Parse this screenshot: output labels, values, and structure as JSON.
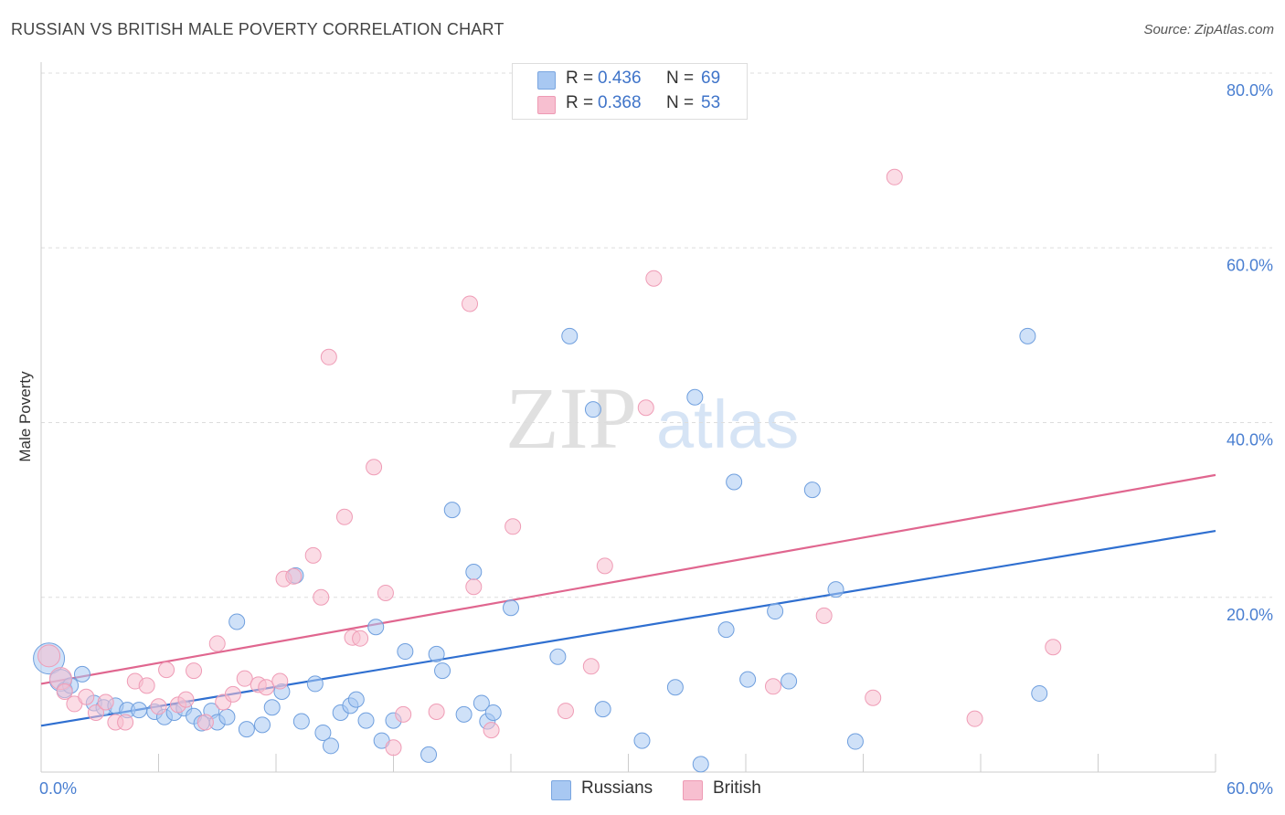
{
  "title": "RUSSIAN VS BRITISH MALE POVERTY CORRELATION CHART",
  "source": "Source: ZipAtlas.com",
  "watermark": {
    "zip": "ZIP",
    "atlas": "atlas"
  },
  "legend": {
    "rows": [
      {
        "r_label": "R =",
        "r_value": "0.436",
        "n_label": "N =",
        "n_value": "69",
        "color": "#a8c8f2",
        "stroke": "#7aa6e0"
      },
      {
        "r_label": "R =",
        "r_value": "0.368",
        "n_label": "N =",
        "n_value": "53",
        "color": "#f7bfd0",
        "stroke": "#ee9ab4"
      }
    ]
  },
  "bottom_legend": [
    {
      "label": "Russians",
      "color": "#a8c8f2",
      "stroke": "#7aa6e0"
    },
    {
      "label": "British",
      "color": "#f7bfd0",
      "stroke": "#ee9ab4"
    }
  ],
  "chart_data": {
    "type": "scatter",
    "title": "RUSSIAN VS BRITISH MALE POVERTY CORRELATION CHART",
    "xlabel": "",
    "ylabel": "Male Poverty",
    "xlim": [
      0,
      60
    ],
    "ylim": [
      0,
      80
    ],
    "x_tick_labels": [
      "0.0%",
      "60.0%"
    ],
    "y_ticks": [
      20,
      40,
      60,
      80
    ],
    "y_tick_labels": [
      "20.0%",
      "40.0%",
      "60.0%",
      "80.0%"
    ],
    "grid": true,
    "series": [
      {
        "name": "Russians",
        "color": "#a8c8f2",
        "stroke": "#6f9fde",
        "trend_color": "#2f6fd0",
        "trend": [
          [
            0,
            5.3
          ],
          [
            60,
            27.6
          ]
        ],
        "points": [
          [
            0.4,
            13.0,
            3
          ],
          [
            1.0,
            10.5,
            2
          ],
          [
            1.2,
            9.4,
            1
          ],
          [
            1.5,
            9.9,
            1
          ],
          [
            2.1,
            11.2,
            1
          ],
          [
            2.7,
            7.9,
            1
          ],
          [
            3.2,
            7.4,
            1
          ],
          [
            3.8,
            7.6,
            1
          ],
          [
            4.4,
            7.1,
            1
          ],
          [
            5.0,
            7.1,
            1
          ],
          [
            5.8,
            6.9,
            1
          ],
          [
            6.3,
            6.3,
            1
          ],
          [
            6.8,
            6.8,
            1
          ],
          [
            7.3,
            7.3,
            1
          ],
          [
            7.8,
            6.4,
            1
          ],
          [
            8.2,
            5.6,
            1
          ],
          [
            8.7,
            7.0,
            1
          ],
          [
            9.0,
            5.7,
            1
          ],
          [
            9.5,
            6.3,
            1
          ],
          [
            10.0,
            17.2,
            1
          ],
          [
            10.5,
            4.9,
            1
          ],
          [
            11.3,
            5.4,
            1
          ],
          [
            11.8,
            7.4,
            1
          ],
          [
            12.3,
            9.2,
            1
          ],
          [
            13.0,
            22.5,
            1
          ],
          [
            13.3,
            5.8,
            1
          ],
          [
            14.0,
            10.1,
            1
          ],
          [
            14.4,
            4.5,
            1
          ],
          [
            14.8,
            3.0,
            1
          ],
          [
            15.3,
            6.8,
            1
          ],
          [
            15.8,
            7.6,
            1
          ],
          [
            16.1,
            8.3,
            1
          ],
          [
            16.6,
            5.9,
            1
          ],
          [
            17.1,
            16.6,
            1
          ],
          [
            17.4,
            3.6,
            1
          ],
          [
            18.0,
            5.9,
            1
          ],
          [
            18.6,
            13.8,
            1
          ],
          [
            19.8,
            2.0,
            1
          ],
          [
            20.2,
            13.5,
            1
          ],
          [
            20.5,
            11.6,
            1
          ],
          [
            21.0,
            30.0,
            1
          ],
          [
            21.6,
            6.6,
            1
          ],
          [
            22.1,
            22.9,
            1
          ],
          [
            22.5,
            7.9,
            1
          ],
          [
            22.8,
            5.8,
            1
          ],
          [
            23.1,
            6.8,
            1
          ],
          [
            24.0,
            18.8,
            1
          ],
          [
            26.4,
            13.2,
            1
          ],
          [
            27.0,
            49.9,
            1
          ],
          [
            28.2,
            41.5,
            1
          ],
          [
            28.7,
            7.2,
            1
          ],
          [
            30.7,
            3.6,
            1
          ],
          [
            32.4,
            9.7,
            1
          ],
          [
            33.4,
            42.9,
            1
          ],
          [
            33.7,
            0.9,
            1
          ],
          [
            35.0,
            16.3,
            1
          ],
          [
            35.4,
            33.2,
            1
          ],
          [
            36.1,
            10.6,
            1
          ],
          [
            37.5,
            18.4,
            1
          ],
          [
            38.2,
            10.4,
            1
          ],
          [
            39.4,
            32.3,
            1
          ],
          [
            40.6,
            20.9,
            1
          ],
          [
            41.6,
            3.5,
            1
          ],
          [
            50.4,
            49.9,
            1
          ],
          [
            51.0,
            9.0,
            1
          ]
        ]
      },
      {
        "name": "British",
        "color": "#f7bfd0",
        "stroke": "#ef9cb6",
        "trend_color": "#e0668f",
        "trend": [
          [
            0,
            10.1
          ],
          [
            60,
            34.0
          ]
        ],
        "points": [
          [
            0.4,
            13.3,
            2
          ],
          [
            1.0,
            10.7,
            2
          ],
          [
            1.2,
            9.2,
            1
          ],
          [
            1.7,
            7.8,
            1
          ],
          [
            2.3,
            8.6,
            1
          ],
          [
            2.8,
            6.8,
            1
          ],
          [
            3.3,
            8.0,
            1
          ],
          [
            3.8,
            5.7,
            1
          ],
          [
            4.3,
            5.7,
            1
          ],
          [
            4.8,
            10.4,
            1
          ],
          [
            5.4,
            9.9,
            1
          ],
          [
            6.0,
            7.5,
            1
          ],
          [
            6.4,
            11.7,
            1
          ],
          [
            7.0,
            7.7,
            1
          ],
          [
            7.4,
            8.3,
            1
          ],
          [
            7.8,
            11.6,
            1
          ],
          [
            8.4,
            5.7,
            1
          ],
          [
            9.0,
            14.7,
            1
          ],
          [
            9.3,
            8.0,
            1
          ],
          [
            9.8,
            8.9,
            1
          ],
          [
            10.4,
            10.7,
            1
          ],
          [
            11.1,
            10.0,
            1
          ],
          [
            11.5,
            9.7,
            1
          ],
          [
            12.2,
            10.4,
            1
          ],
          [
            12.4,
            22.1,
            1
          ],
          [
            12.9,
            22.4,
            1
          ],
          [
            13.9,
            24.8,
            1
          ],
          [
            14.3,
            20.0,
            1
          ],
          [
            14.7,
            47.5,
            1
          ],
          [
            15.5,
            29.2,
            1
          ],
          [
            15.9,
            15.4,
            1
          ],
          [
            16.3,
            15.3,
            1
          ],
          [
            17.0,
            34.9,
            1
          ],
          [
            17.6,
            20.5,
            1
          ],
          [
            18.0,
            2.8,
            1
          ],
          [
            18.5,
            6.6,
            1
          ],
          [
            20.2,
            6.9,
            1
          ],
          [
            21.9,
            53.6,
            1
          ],
          [
            22.1,
            21.2,
            1
          ],
          [
            23.0,
            4.8,
            1
          ],
          [
            24.1,
            28.1,
            1
          ],
          [
            26.8,
            7.0,
            1
          ],
          [
            28.1,
            12.1,
            1
          ],
          [
            28.8,
            23.6,
            1
          ],
          [
            30.9,
            41.7,
            1
          ],
          [
            31.3,
            56.5,
            1
          ],
          [
            37.4,
            9.8,
            1
          ],
          [
            40.0,
            17.9,
            1
          ],
          [
            42.5,
            8.5,
            1
          ],
          [
            43.6,
            68.1,
            1
          ],
          [
            47.7,
            6.1,
            1
          ],
          [
            51.7,
            14.3,
            1
          ]
        ]
      }
    ]
  }
}
